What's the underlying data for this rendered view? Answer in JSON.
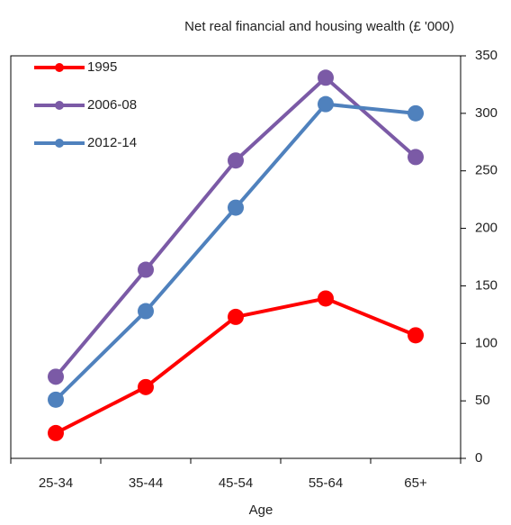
{
  "chart_data": {
    "type": "line",
    "title": "Net real financial and housing wealth (£ '000)",
    "x_label": "Age",
    "categories": [
      "25-34",
      "35-44",
      "45-54",
      "55-64",
      "65+"
    ],
    "series": [
      {
        "name": "1995",
        "color": "#ff0000",
        "values": [
          22,
          62,
          123,
          139,
          107
        ]
      },
      {
        "name": "2006-08",
        "color": "#7b5aa6",
        "values": [
          71,
          164,
          259,
          331,
          262
        ]
      },
      {
        "name": "2012-14",
        "color": "#4f81bd",
        "values": [
          51,
          128,
          218,
          308,
          300
        ]
      }
    ],
    "ylim": [
      0,
      350
    ],
    "yticks": [
      0,
      50,
      100,
      150,
      200,
      250,
      300,
      350
    ],
    "legend": "upper left"
  }
}
